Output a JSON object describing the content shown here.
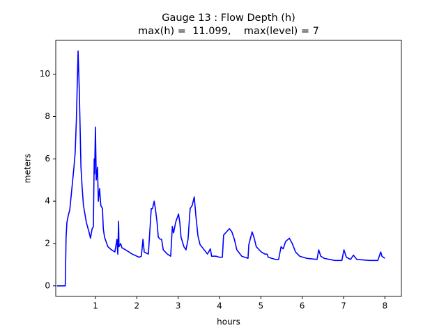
{
  "chart_data": {
    "type": "line",
    "title": [
      "Gauge 13 : Flow Depth (h)",
      "max(h) =  11.099,    max(level) = 7"
    ],
    "x_label": "hours",
    "y_label": "meters",
    "x": [
      0.07,
      0.27,
      0.29,
      0.31,
      0.34,
      0.38,
      0.43,
      0.48,
      0.51,
      0.54,
      0.58,
      0.61,
      0.65,
      0.68,
      0.71,
      0.78,
      0.85,
      0.88,
      0.92,
      0.95,
      0.97,
      0.98,
      1.0,
      1.02,
      1.05,
      1.07,
      1.1,
      1.13,
      1.17,
      1.19,
      1.22,
      1.3,
      1.39,
      1.47,
      1.52,
      1.54,
      1.56,
      1.57,
      1.61,
      1.64,
      1.73,
      1.89,
      2.06,
      2.11,
      2.15,
      2.18,
      2.28,
      2.35,
      2.38,
      2.42,
      2.45,
      2.49,
      2.52,
      2.57,
      2.6,
      2.64,
      2.74,
      2.82,
      2.86,
      2.89,
      2.94,
      3.01,
      3.04,
      3.07,
      3.14,
      3.19,
      3.24,
      3.29,
      3.34,
      3.39,
      3.43,
      3.48,
      3.53,
      3.61,
      3.71,
      3.78,
      3.81,
      3.92,
      4.0,
      4.07,
      4.1,
      4.17,
      4.24,
      4.3,
      4.36,
      4.42,
      4.54,
      4.69,
      4.71,
      4.79,
      4.84,
      4.89,
      5.01,
      5.1,
      5.15,
      5.18,
      5.35,
      5.43,
      5.49,
      5.54,
      5.6,
      5.69,
      5.76,
      5.84,
      5.94,
      6.11,
      6.36,
      6.4,
      6.45,
      6.53,
      6.79,
      6.96,
      7.01,
      7.07,
      7.17,
      7.24,
      7.32,
      7.63,
      7.83,
      7.9,
      7.93,
      8.0
    ],
    "series": [
      {
        "color": "#0000ff",
        "values": [
          0,
          0,
          2.3,
          3.0,
          3.3,
          3.6,
          4.6,
          5.6,
          6.3,
          7.9,
          11.1,
          9.2,
          5.6,
          4.6,
          3.8,
          3.0,
          2.5,
          2.25,
          2.7,
          2.8,
          6.0,
          5.3,
          7.5,
          5.0,
          5.6,
          4.0,
          4.6,
          3.8,
          3.65,
          2.7,
          2.3,
          1.85,
          1.7,
          1.6,
          2.2,
          1.5,
          3.05,
          1.85,
          2.0,
          1.8,
          1.7,
          1.5,
          1.35,
          1.4,
          2.2,
          1.6,
          1.5,
          3.65,
          3.65,
          4.0,
          3.65,
          3.0,
          2.3,
          2.2,
          2.2,
          1.7,
          1.5,
          1.4,
          2.8,
          2.5,
          3.0,
          3.4,
          3.0,
          2.3,
          1.85,
          1.7,
          2.2,
          3.65,
          3.8,
          4.2,
          3.3,
          2.35,
          1.95,
          1.75,
          1.5,
          1.75,
          1.4,
          1.4,
          1.35,
          1.35,
          2.4,
          2.55,
          2.7,
          2.55,
          2.2,
          1.7,
          1.4,
          1.3,
          1.95,
          2.55,
          2.25,
          1.85,
          1.6,
          1.5,
          1.5,
          1.35,
          1.25,
          1.25,
          1.85,
          1.75,
          2.1,
          2.25,
          2.0,
          1.6,
          1.4,
          1.3,
          1.25,
          1.7,
          1.4,
          1.3,
          1.2,
          1.2,
          1.7,
          1.35,
          1.25,
          1.45,
          1.25,
          1.2,
          1.2,
          1.6,
          1.4,
          1.3
        ]
      }
    ],
    "xlim": [
      0.04,
      8.4
    ],
    "ylim": [
      -0.5,
      11.6
    ],
    "xticks": [
      1,
      2,
      3,
      4,
      5,
      6,
      7,
      8
    ],
    "yticks": [
      0,
      2,
      4,
      6,
      8,
      10
    ]
  }
}
